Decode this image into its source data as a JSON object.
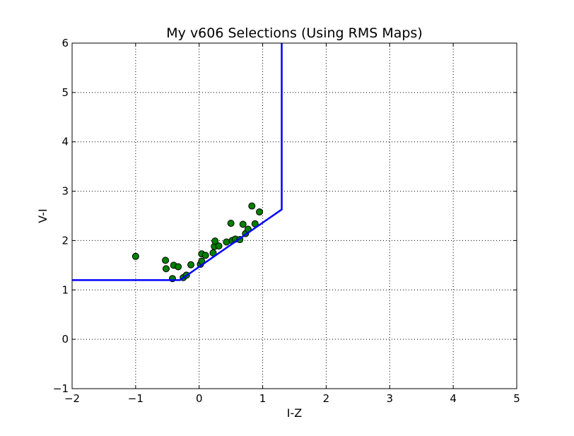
{
  "chart_data": {
    "type": "scatter",
    "title": "My v606 Selections (Using RMS Maps)",
    "xlabel": "I-Z",
    "ylabel": "V-I",
    "xlim": [
      -2,
      5
    ],
    "ylim": [
      -1,
      6
    ],
    "xticks": [
      -2,
      -1,
      0,
      1,
      2,
      3,
      4,
      5
    ],
    "yticks": [
      -1,
      0,
      1,
      2,
      3,
      4,
      5,
      6
    ],
    "xtick_labels": [
      "−2",
      "−1",
      "0",
      "1",
      "2",
      "3",
      "4",
      "5"
    ],
    "ytick_labels": [
      "−1",
      "0",
      "1",
      "2",
      "3",
      "4",
      "5",
      "6"
    ],
    "grid": true,
    "grid_style": "dotted",
    "series": [
      {
        "type": "scatter",
        "color": "#007f00",
        "points": [
          [
            -1.0,
            1.68
          ],
          [
            -0.53,
            1.6
          ],
          [
            -0.52,
            1.43
          ],
          [
            -0.4,
            1.5
          ],
          [
            -0.33,
            1.47
          ],
          [
            -0.42,
            1.23
          ],
          [
            -0.25,
            1.25
          ],
          [
            -0.2,
            1.3
          ],
          [
            -0.13,
            1.51
          ],
          [
            0.02,
            1.52
          ],
          [
            0.04,
            1.58
          ],
          [
            0.04,
            1.73
          ],
          [
            0.1,
            1.7
          ],
          [
            0.22,
            1.75
          ],
          [
            0.24,
            1.88
          ],
          [
            0.25,
            1.99
          ],
          [
            0.31,
            1.89
          ],
          [
            0.43,
            1.97
          ],
          [
            0.5,
            2.35
          ],
          [
            0.52,
            2.0
          ],
          [
            0.57,
            2.03
          ],
          [
            0.64,
            2.02
          ],
          [
            0.69,
            2.33
          ],
          [
            0.73,
            2.14
          ],
          [
            0.77,
            2.23
          ],
          [
            0.83,
            2.7
          ],
          [
            0.88,
            2.34
          ],
          [
            0.95,
            2.58
          ]
        ]
      },
      {
        "type": "line",
        "color": "#0000ff",
        "points": [
          [
            -2.0,
            1.2
          ],
          [
            -0.3,
            1.2
          ],
          [
            1.3,
            2.63
          ],
          [
            1.3,
            6.0
          ]
        ]
      }
    ]
  }
}
